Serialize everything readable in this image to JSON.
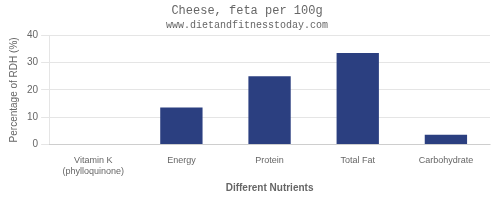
{
  "chart_data": {
    "type": "bar",
    "title": "Cheese, feta per 100g",
    "subtitle": "www.dietandfitnesstoday.com",
    "xlabel": "Different Nutrients",
    "ylabel": "Percentage of RDH (%)",
    "categories": [
      "Vitamin K (phylloquinone)",
      "Energy",
      "Protein",
      "Total Fat",
      "Carbohydrate"
    ],
    "values": [
      0,
      13.5,
      25.0,
      33.5,
      3.5
    ],
    "color": "#2b3f80",
    "ylim": [
      0,
      40
    ],
    "yticks": [
      0,
      10,
      20,
      30,
      40
    ],
    "grid": true
  }
}
